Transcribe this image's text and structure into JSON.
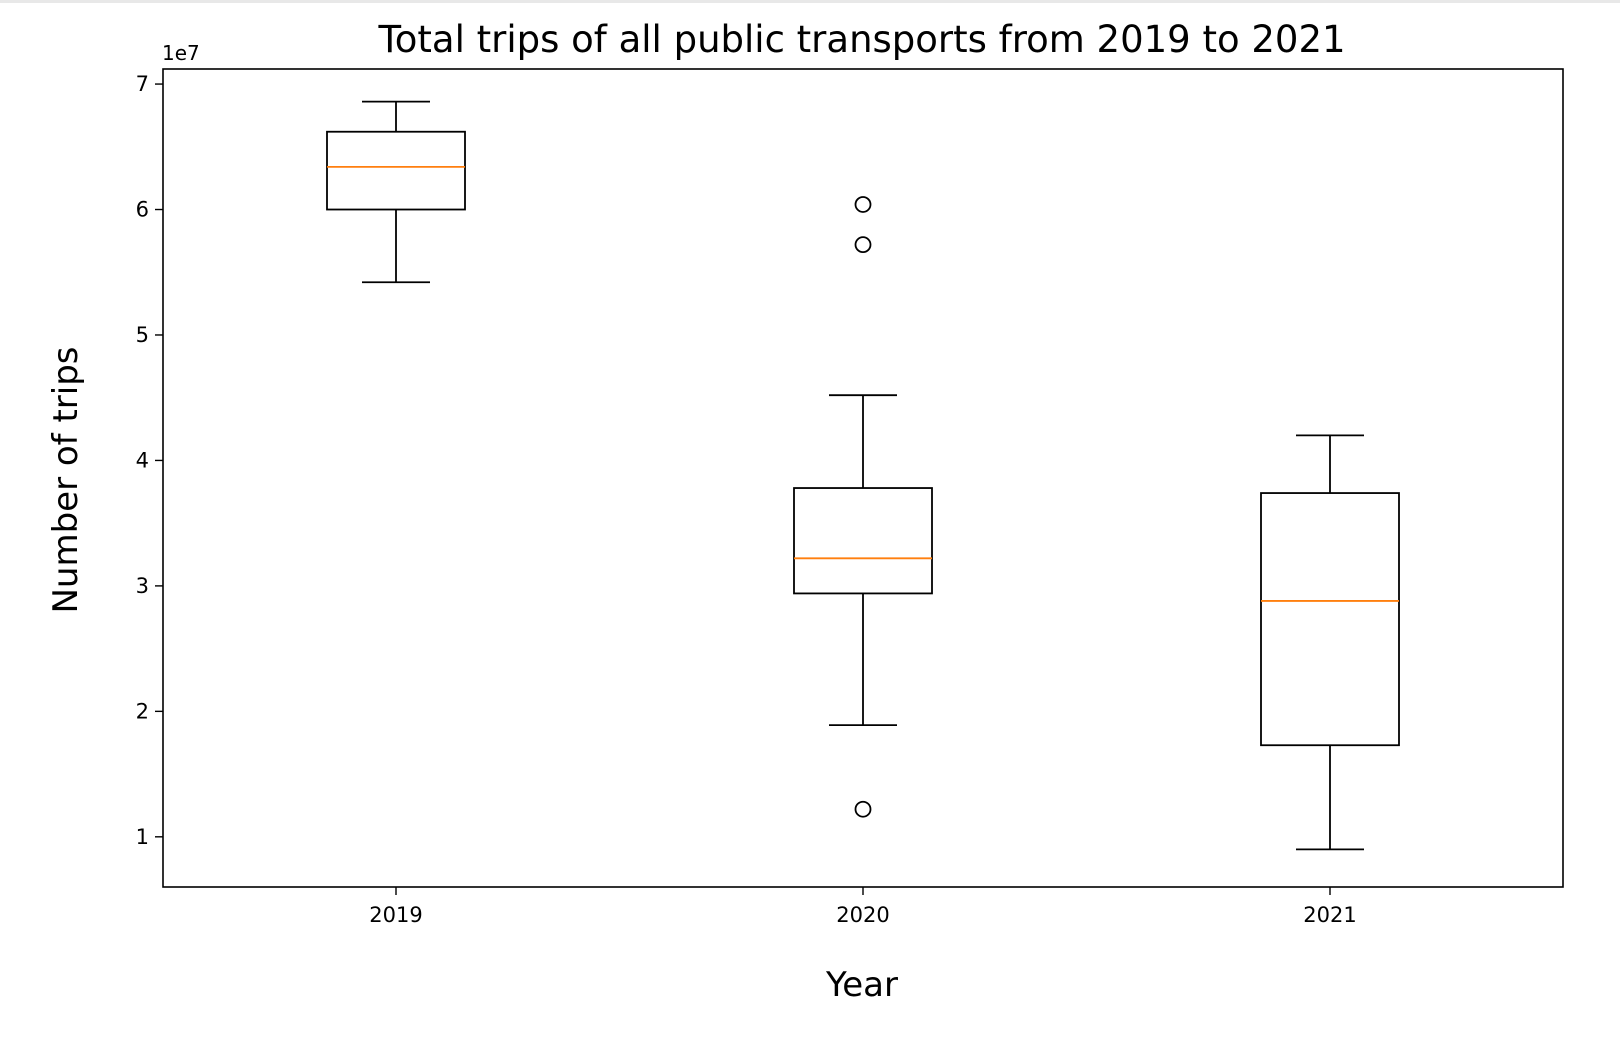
{
  "chart_data": {
    "type": "box",
    "title": "Total trips of all public transports from 2019 to 2021",
    "xlabel": "Year",
    "ylabel": "Number of trips",
    "y_scale_label": "1e7",
    "y_multiplier": 10000000,
    "ylim": [
      0.6,
      7.12
    ],
    "yticks": [
      1,
      2,
      3,
      4,
      5,
      6,
      7
    ],
    "categories": [
      "2019",
      "2020",
      "2021"
    ],
    "boxes": [
      {
        "label": "2019",
        "whisker_low": 5.42,
        "q1": 6.0,
        "median": 6.34,
        "q3": 6.62,
        "whisker_high": 6.86,
        "outliers": []
      },
      {
        "label": "2020",
        "whisker_low": 1.89,
        "q1": 2.94,
        "median": 3.22,
        "q3": 3.78,
        "whisker_high": 4.52,
        "outliers": [
          1.22,
          5.72,
          6.04
        ]
      },
      {
        "label": "2021",
        "whisker_low": 0.9,
        "q1": 1.73,
        "median": 2.88,
        "q3": 3.74,
        "whisker_high": 4.2,
        "outliers": []
      }
    ],
    "grid": false,
    "colors": {
      "box": "#000000",
      "median": "#ff7f0e",
      "axes": "#000000"
    }
  }
}
